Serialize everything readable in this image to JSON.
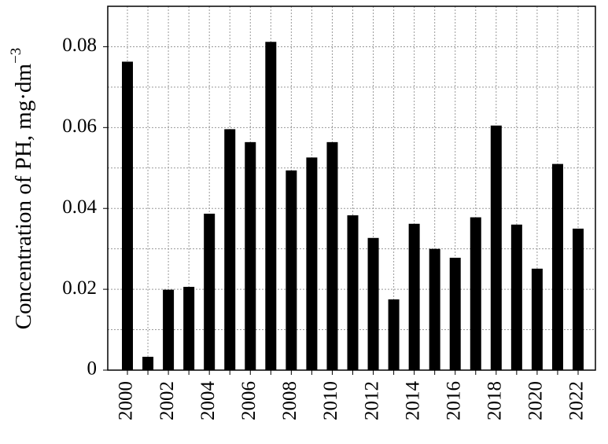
{
  "chart_data": {
    "type": "bar",
    "y_label": "Concentration of PH, mg·dm",
    "y_label_superscript": "−3",
    "categories": [
      "2000",
      null,
      "2002",
      null,
      "2004",
      null,
      "2006",
      null,
      "2008",
      null,
      "2010",
      null,
      "2012",
      null,
      "2014",
      null,
      "2016",
      null,
      "2018",
      null,
      "2020",
      null,
      "2022"
    ],
    "values": [
      0.0763,
      0.0033,
      0.0199,
      0.0206,
      0.0387,
      0.0596,
      0.0564,
      0.0812,
      0.0494,
      0.0526,
      0.0564,
      0.0383,
      0.0327,
      0.0175,
      0.0362,
      0.03,
      0.0278,
      0.0378,
      0.0605,
      0.036,
      0.0251,
      0.051,
      0.035
    ],
    "color": "#000000",
    "ylim": [
      0,
      0.09
    ],
    "yticks": [
      0,
      0.02,
      0.04,
      0.06,
      0.08
    ],
    "minor_yticks": [
      0.01,
      0.03,
      0.05,
      0.07,
      0.09
    ],
    "grid": true
  }
}
